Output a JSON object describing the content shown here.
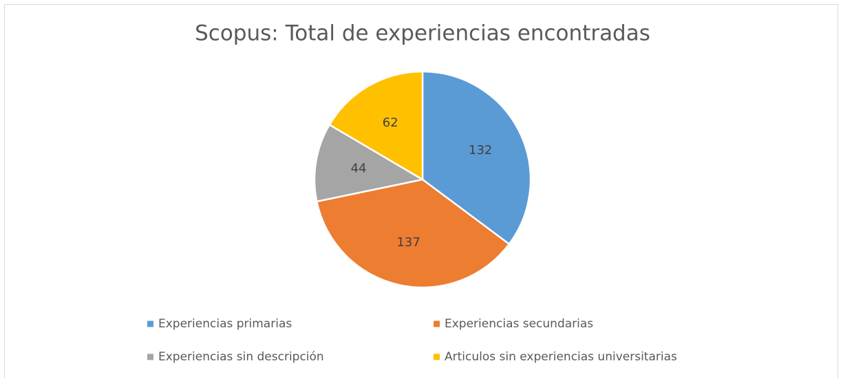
{
  "chart_data": {
    "type": "pie",
    "title": "Scopus: Total de experiencias encontradas",
    "categories": [
      "Experiencias primarias",
      "Experiencias secundarias",
      "Experiencias sin descripción",
      "Articulos sin experiencias universitarias"
    ],
    "values": [
      132,
      137,
      44,
      62
    ],
    "colors": [
      "#5b9bd5",
      "#ed7d31",
      "#a5a5a5",
      "#ffc000"
    ],
    "legend": "bottom"
  }
}
